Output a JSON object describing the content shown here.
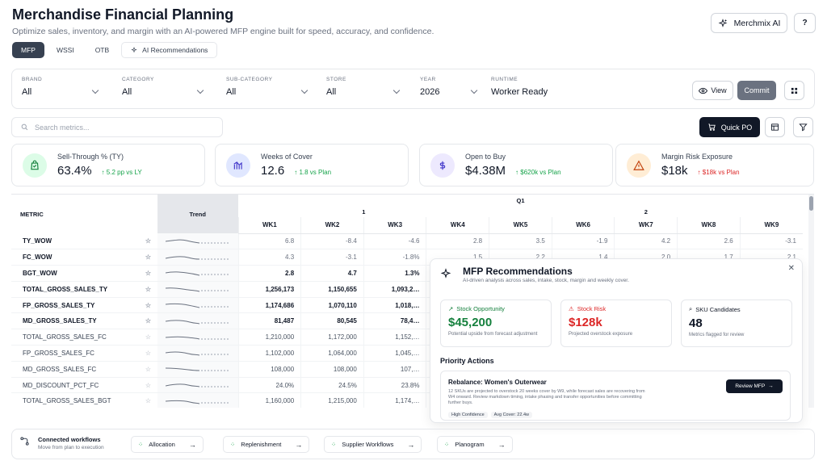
{
  "header": {
    "title": "Merchandise Financial Planning",
    "subtitle": "Optimize sales, inventory, and margin with an AI-powered MFP engine built for speed, accuracy, and confidence.",
    "merchmix_label": "Merchmix AI",
    "help_label": "?"
  },
  "tabs": [
    {
      "label": "MFP",
      "active": true
    },
    {
      "label": "WSSI"
    },
    {
      "label": "OTB"
    },
    {
      "label": "AI Recommendations"
    }
  ],
  "filters": [
    {
      "label": "BRAND",
      "value": "All"
    },
    {
      "label": "CATEGORY",
      "value": "All"
    },
    {
      "label": "SUB-CATEGORY",
      "value": "All"
    },
    {
      "label": "STORE",
      "value": "All"
    },
    {
      "label": "YEAR",
      "value": "2026"
    },
    {
      "label": "RUNTIME",
      "value": "Worker Ready"
    }
  ],
  "actions": {
    "view_label": "View",
    "commit_label": "Commit",
    "quick_po_label": "Quick PO"
  },
  "search": {
    "placeholder": "Search metrics..."
  },
  "kpis": [
    {
      "label": "Sell-Through % (TY)",
      "value": "63.4%",
      "delta": "5.2 pp vs LY",
      "color": "#16a34a"
    },
    {
      "label": "Weeks of Cover",
      "value": "12.6",
      "delta": "1.8 vs Plan",
      "color": "#16a34a"
    },
    {
      "label": "Open to Buy",
      "value": "$4.38M",
      "delta": "$620k vs Plan",
      "color": "#16a34a"
    },
    {
      "label": "Margin Risk Exposure",
      "value": "$18k",
      "delta": "$18k vs Plan",
      "color": "#dc2626"
    }
  ],
  "table": {
    "metric_header": "METRIC",
    "trend_header": "Trend",
    "quarter": "Q1",
    "groups": [
      "1",
      "2"
    ],
    "weeks": [
      "WK1",
      "WK2",
      "WK3",
      "WK4",
      "WK5",
      "WK6",
      "WK7",
      "WK8",
      "WK9"
    ],
    "rows": [
      {
        "name": "TY_WOW",
        "values": [
          "6.8",
          "-8.4",
          "-4.6",
          "2.8",
          "3.5",
          "-1.9",
          "4.2",
          "2.6",
          "-3.1"
        ]
      },
      {
        "name": "FC_WOW",
        "values": [
          "4.3",
          "-3.1",
          "-1.8%",
          "1.5",
          "2.2",
          "1.4",
          "2.0",
          "1.7",
          "2.1"
        ]
      },
      {
        "name": "BGT_WOW",
        "values": [
          "2.8",
          "4.7",
          "1.3%",
          "",
          "",
          "",
          "",
          "",
          ""
        ]
      },
      {
        "name": "TOTAL_GROSS_SALES_TY",
        "values": [
          "1,256,173",
          "1,150,655",
          "1,093,2…",
          "",
          "",
          "",
          "",
          "",
          ""
        ]
      },
      {
        "name": "FP_GROSS_SALES_TY",
        "values": [
          "1,174,686",
          "1,070,110",
          "1,018,…",
          "",
          "",
          "",
          "",
          "",
          ""
        ]
      },
      {
        "name": "MD_GROSS_SALES_TY",
        "values": [
          "81,487",
          "80,545",
          "78,4…",
          "",
          "",
          "",
          "",
          "",
          ""
        ]
      },
      {
        "name": "TOTAL_GROSS_SALES_FC",
        "values": [
          "1,210,000",
          "1,172,000",
          "1,152,…",
          "",
          "",
          "",
          "",
          "",
          ""
        ]
      },
      {
        "name": "FP_GROSS_SALES_FC",
        "values": [
          "1,102,000",
          "1,064,000",
          "1,045,…",
          "",
          "",
          "",
          "",
          "",
          ""
        ]
      },
      {
        "name": "MD_GROSS_SALES_FC",
        "values": [
          "108,000",
          "108,000",
          "107,…",
          "",
          "",
          "",
          "",
          "",
          ""
        ]
      },
      {
        "name": "MD_DISCOUNT_PCT_FC",
        "values": [
          "24.0%",
          "24.5%",
          "23.8%",
          "",
          "",
          "",
          "",
          "",
          ""
        ]
      },
      {
        "name": "TOTAL_GROSS_SALES_BGT",
        "values": [
          "1,160,000",
          "1,215,000",
          "1,174,…",
          "",
          "",
          "",
          "",
          "",
          ""
        ]
      }
    ]
  },
  "recommendations": {
    "title": "MFP Recommendations",
    "subtitle": "AI-driven analysis across sales, intake, stock, margin and weekly cover.",
    "cards": [
      {
        "label": "Stock Opportunity",
        "value": "$45,200",
        "note": "Potential upside from forecast adjustment",
        "color": "#15803d"
      },
      {
        "label": "Stock Risk",
        "value": "$128k",
        "note": "Projected overstock exposure",
        "color": "#dc2626"
      },
      {
        "label": "SKU Candidates",
        "value": "48",
        "note": "Metrics flagged for review",
        "color": "#111827"
      }
    ],
    "priority_title": "Priority Actions",
    "action": {
      "title": "Rebalance: Women's Outerwear",
      "description": "12 SKUs are projected to overstock 20 weeks cover by W9, while forecast sales are recovering from W4 onward. Review markdown timing, intake phasing and transfer opportunities before committing further buys.",
      "tags": [
        "High Confidence",
        "Avg Cover: 22.4w"
      ],
      "button": "Review MFP"
    }
  },
  "workflows": {
    "title": "Connected workflows",
    "subtitle": "Move from plan to execution",
    "items": [
      "Allocation",
      "Replenishment",
      "Supplier Workflows",
      "Planogram"
    ]
  }
}
